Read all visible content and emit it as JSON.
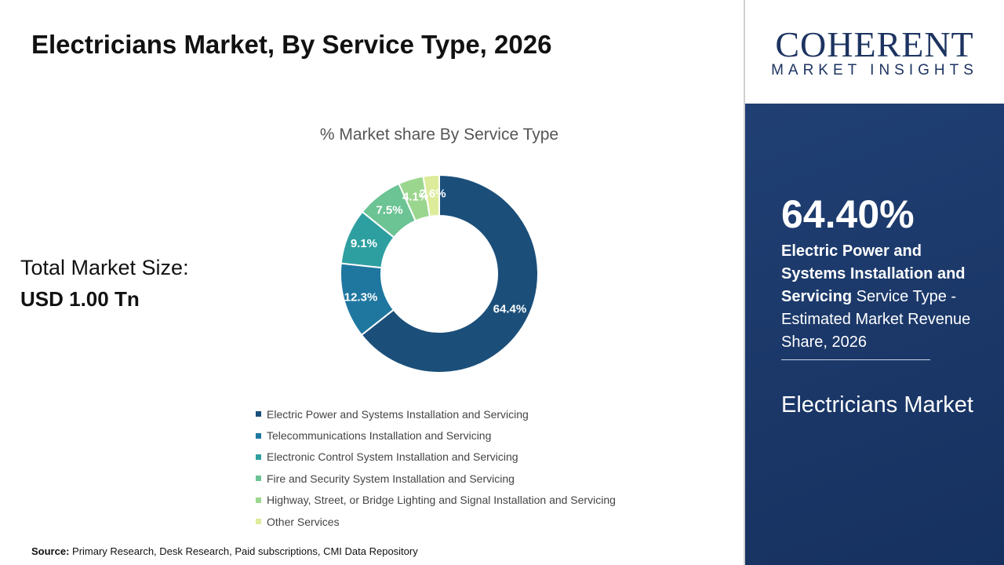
{
  "header": {
    "title": "Electricians Market, By Service Type, 2026"
  },
  "total": {
    "label": "Total Market Size:",
    "value": "USD 1.00 Tn"
  },
  "source": {
    "label": "Source:",
    "text": " Primary Research, Desk Research, Paid subscriptions, CMI Data Repository"
  },
  "logo": {
    "main": "COHERENT",
    "sub": "MARKET INSIGHTS"
  },
  "panel": {
    "percent": "64.40%",
    "bold": "Electric Power and Systems Installation and Servicing",
    "rest": " Service Type - Estimated Market Revenue Share, 2026",
    "market": "Electricians Market"
  },
  "chart_data": {
    "type": "pie",
    "donut": true,
    "title": "% Market share By Service Type",
    "categories": [
      "Electric Power and Systems Installation and Servicing",
      "Telecommunications Installation and Servicing",
      "Electronic Control System Installation and Servicing",
      "Fire and Security System Installation and Servicing",
      "Highway, Street, or Bridge Lighting and Signal Installation and Servicing",
      "Other Services"
    ],
    "values": [
      64.4,
      12.3,
      9.1,
      7.5,
      4.1,
      2.6
    ],
    "labels": [
      "64.4%",
      "12.3%",
      "9.1%",
      "7.5%",
      "4.1%",
      "2.6%"
    ],
    "colors": [
      "#1b4f7a",
      "#1f77a0",
      "#2e9fa0",
      "#6cc394",
      "#9bd68f",
      "#dcec9a"
    ],
    "legend": "bottom"
  }
}
